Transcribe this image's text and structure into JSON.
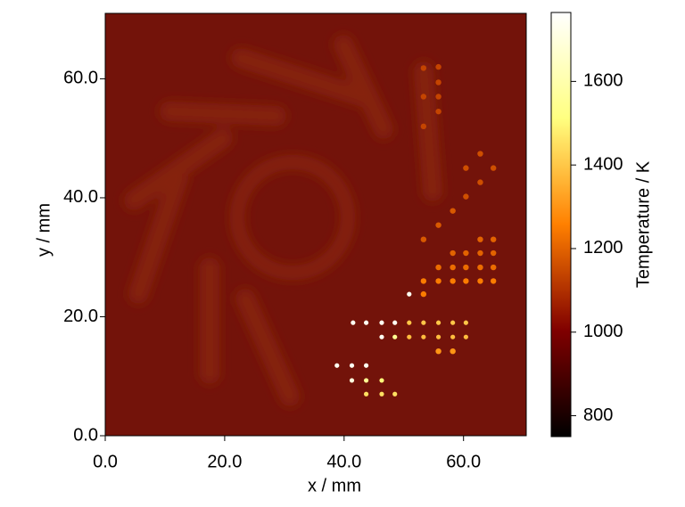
{
  "chart_data": {
    "type": "scatter",
    "xlabel": "x / mm",
    "ylabel": "y / mm",
    "colorbar_label": "Temperature / K",
    "colormap": "afmhot",
    "xlim": [
      0,
      70.5
    ],
    "ylim": [
      0,
      71
    ],
    "clim": [
      750,
      1765
    ],
    "xticks": [
      {
        "value": 0,
        "label": "0.0"
      },
      {
        "value": 20,
        "label": "20.0"
      },
      {
        "value": 40,
        "label": "40.0"
      },
      {
        "value": 60,
        "label": "60.0"
      }
    ],
    "yticks": [
      {
        "value": 0,
        "label": "0.0"
      },
      {
        "value": 20,
        "label": "20.0"
      },
      {
        "value": 40,
        "label": "40.0"
      },
      {
        "value": 60,
        "label": "60.0"
      }
    ],
    "cticks": [
      800,
      1000,
      1200,
      1400,
      1600
    ],
    "x": [
      41.5,
      43.7,
      46.3,
      48.5,
      46.3,
      38.8,
      41.3,
      43.7,
      41.3,
      50.9,
      48.5,
      43.7,
      46.3,
      43.7,
      46.3,
      48.5,
      50.9,
      53.3,
      55.8,
      58.2,
      60.4,
      50.9,
      53.3,
      55.8,
      58.2,
      60.4,
      55.8,
      58.2,
      53.3,
      53.3,
      55.8,
      58.2,
      60.4,
      62.8,
      65,
      55.8,
      58.2,
      60.4,
      62.8,
      65,
      58.2,
      60.4,
      62.8,
      65,
      62.8,
      65,
      53.3,
      55.8,
      58.2,
      60.4,
      62.8,
      60.4,
      62.8,
      65,
      53.3,
      55.8,
      53.3,
      55.8,
      53.3,
      55.8,
      55.8
    ],
    "y": [
      19,
      19,
      19,
      19,
      16.6,
      11.8,
      11.8,
      11.8,
      9.3,
      23.8,
      16.6,
      9.3,
      9.3,
      7,
      7,
      7,
      19,
      19,
      19,
      19,
      19,
      16.6,
      16.6,
      16.6,
      16.6,
      16.6,
      14.2,
      14.2,
      23.8,
      26,
      26,
      26,
      26,
      26,
      26,
      28.3,
      28.3,
      28.3,
      28.3,
      28.3,
      30.7,
      30.7,
      30.7,
      30.7,
      33,
      33,
      33,
      35.4,
      37.8,
      40.2,
      42.6,
      45,
      47.4,
      45,
      52,
      54.5,
      57,
      59.4,
      61.8,
      62,
      57
    ],
    "values": [
      1740,
      1740,
      1740,
      1740,
      1740,
      1740,
      1740,
      1740,
      1700,
      1740,
      1550,
      1550,
      1500,
      1450,
      1450,
      1450,
      1400,
      1400,
      1400,
      1400,
      1400,
      1380,
      1380,
      1380,
      1380,
      1380,
      1300,
      1300,
      1250,
      1250,
      1250,
      1250,
      1250,
      1250,
      1250,
      1220,
      1220,
      1220,
      1220,
      1220,
      1200,
      1200,
      1200,
      1200,
      1200,
      1200,
      1180,
      1180,
      1180,
      1160,
      1160,
      1160,
      1160,
      1160,
      1140,
      1140,
      1140,
      1140,
      1140,
      1140,
      1140
    ]
  }
}
